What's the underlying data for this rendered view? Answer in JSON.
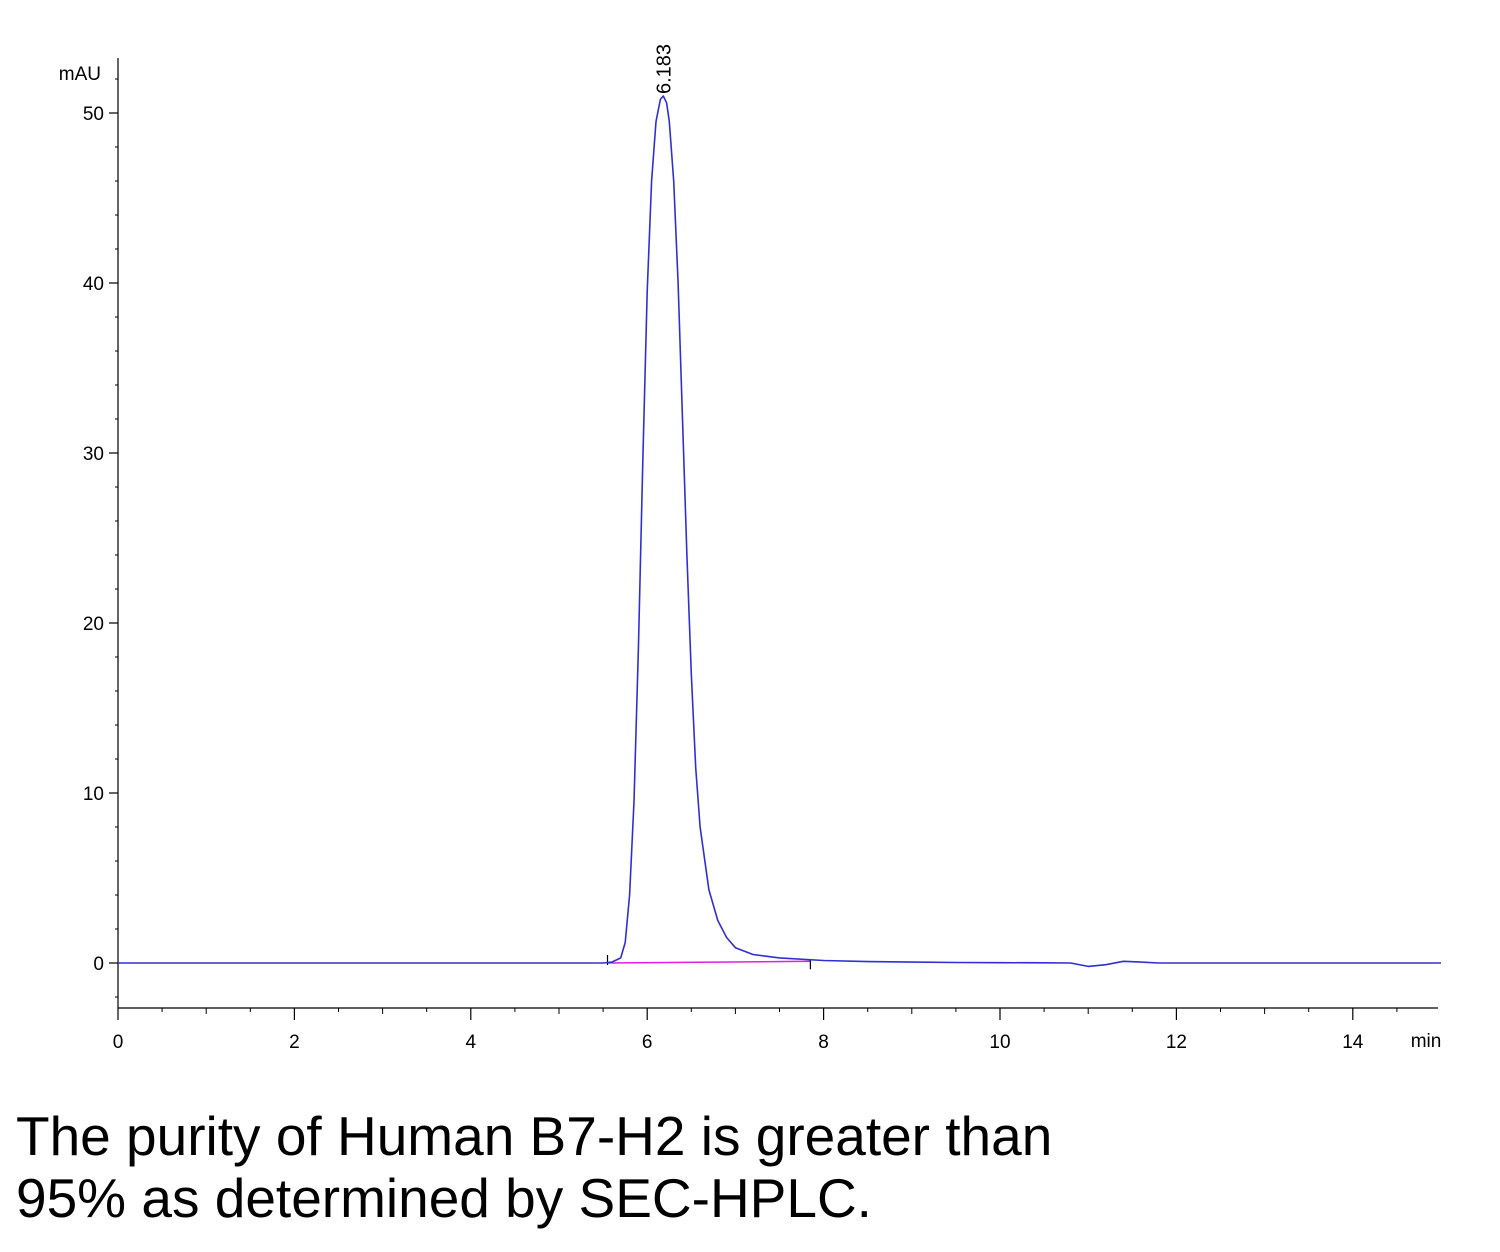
{
  "chart_data": {
    "type": "line",
    "ylabel": "mAU",
    "xlabel": "min",
    "xlim": [
      0,
      15
    ],
    "ylim": [
      -2.7,
      53
    ],
    "x_ticks": [
      0,
      2,
      4,
      6,
      8,
      10,
      12,
      14
    ],
    "y_ticks": [
      0,
      10,
      20,
      30,
      40,
      50
    ],
    "grid": false,
    "legend": "none",
    "series": [
      {
        "color": "#3030d0",
        "x": [
          0,
          0.5,
          1,
          1.5,
          2,
          2.5,
          3,
          3.5,
          4,
          4.5,
          5,
          5.5,
          5.6,
          5.7,
          5.75,
          5.8,
          5.85,
          5.9,
          5.95,
          6.0,
          6.05,
          6.1,
          6.15,
          6.183,
          6.22,
          6.25,
          6.3,
          6.35,
          6.4,
          6.45,
          6.5,
          6.55,
          6.6,
          6.7,
          6.8,
          6.9,
          7.0,
          7.2,
          7.5,
          8.0,
          8.5,
          9.0,
          9.5,
          10.0,
          10.5,
          10.8,
          11.0,
          11.2,
          11.4,
          11.6,
          11.8,
          12.0,
          13.0,
          14.0,
          15.0
        ],
        "y": [
          0,
          0,
          0,
          0,
          0,
          0,
          0,
          0,
          0,
          0,
          0,
          0,
          0.05,
          0.3,
          1.2,
          4.0,
          9.5,
          18.5,
          29.5,
          39.5,
          46.0,
          49.5,
          50.8,
          51.0,
          50.6,
          49.5,
          46.0,
          40.0,
          32.0,
          24.0,
          17.0,
          11.5,
          8.0,
          4.3,
          2.5,
          1.5,
          0.9,
          0.5,
          0.3,
          0.15,
          0.08,
          0.05,
          0.03,
          0.02,
          0.01,
          0.0,
          -0.2,
          -0.1,
          0.1,
          0.05,
          0.0,
          0.0,
          0.0,
          0.0,
          0.0
        ]
      }
    ],
    "baseline": {
      "color": "#e020e0",
      "x": [
        5.55,
        7.85
      ],
      "y": [
        0.0,
        0.1
      ]
    },
    "annotations": [
      {
        "text": "6.183",
        "x": 6.183,
        "y": 51.0
      }
    ]
  },
  "caption": {
    "line1": "The purity of Human B7-H2 is greater than",
    "line2": "95% as determined by SEC-HPLC."
  }
}
